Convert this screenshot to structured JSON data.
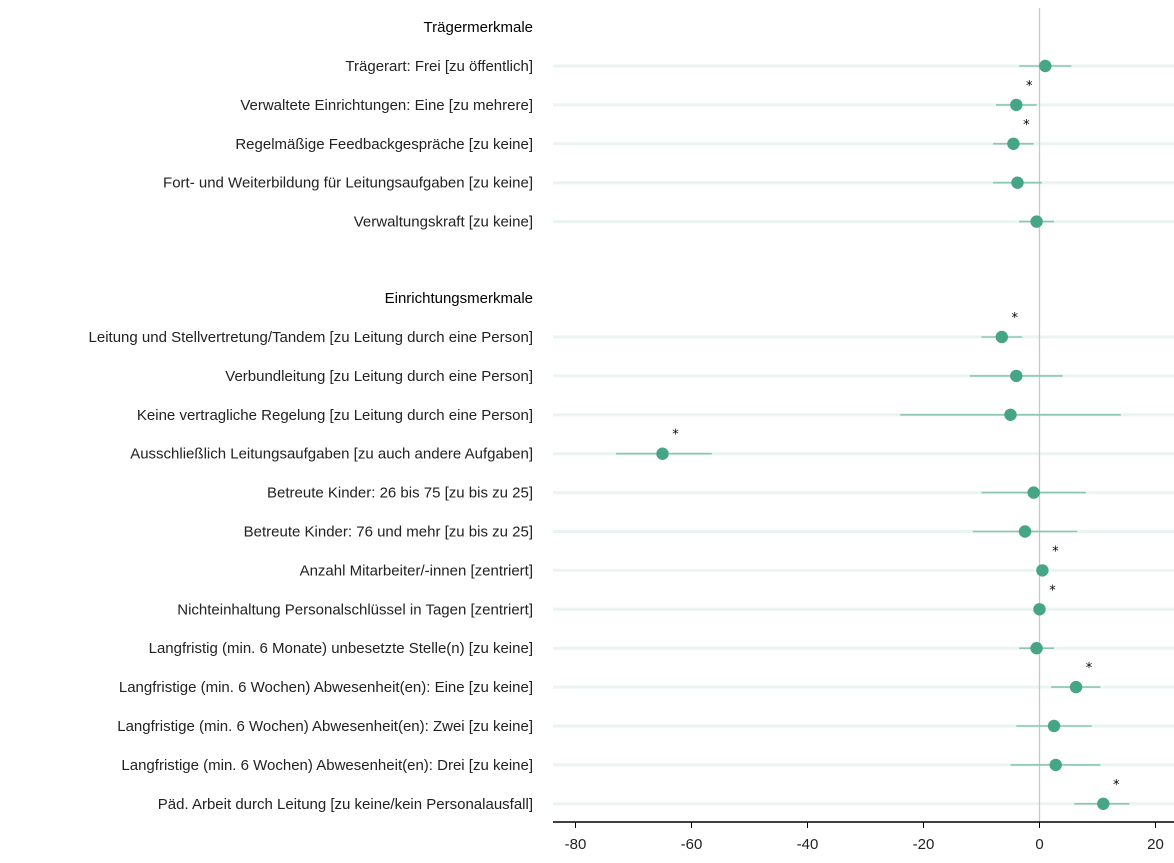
{
  "chart_data": {
    "type": "scatter",
    "subtype": "coefficient-plot-with-confidence-intervals",
    "title": "",
    "xlabel": "",
    "ylabel": "",
    "xlim": [
      -83,
      23
    ],
    "xticks": [
      -80,
      -60,
      -40,
      -20,
      0,
      20
    ],
    "grid": true,
    "legend": "none",
    "reference_line_x": 0,
    "colors": {
      "point": "#45a586",
      "ci_line": "#8cc6b2",
      "row_band": "#eaf4f1",
      "zero_line": "#c8c8c8",
      "axis": "#000000"
    },
    "groups": [
      {
        "name": "Trägermerkmale",
        "rows": [
          {
            "label": "Trägerart: Frei [zu öffentlich]",
            "estimate": 1.0,
            "ci": [
              -3.5,
              5.5
            ],
            "significant": false
          },
          {
            "label": "Verwaltete Einrichtungen: Eine [zu mehrere]",
            "estimate": -4.0,
            "ci": [
              -7.5,
              -0.5
            ],
            "significant": true
          },
          {
            "label": "Regelmäßige Feedbackgespräche [zu keine]",
            "estimate": -4.5,
            "ci": [
              -8.0,
              -1.0
            ],
            "significant": true
          },
          {
            "label": "Fort- und Weiterbildung für Leitungsaufgaben [zu keine]",
            "estimate": -3.8,
            "ci": [
              -8.0,
              0.4
            ],
            "significant": false
          },
          {
            "label": "Verwaltungskraft [zu keine]",
            "estimate": -0.5,
            "ci": [
              -3.5,
              2.5
            ],
            "significant": false
          }
        ]
      },
      {
        "name": "Einrichtungsmerkmale",
        "rows": [
          {
            "label": "Leitung und Stellvertretung/Tandem [zu Leitung durch eine Person]",
            "estimate": -6.5,
            "ci": [
              -10.0,
              -3.0
            ],
            "significant": true
          },
          {
            "label": "Verbundleitung [zu Leitung durch eine Person]",
            "estimate": -4.0,
            "ci": [
              -12.0,
              4.0
            ],
            "significant": false
          },
          {
            "label": "Keine vertragliche Regelung [zu Leitung durch eine Person]",
            "estimate": -5.0,
            "ci": [
              -24.0,
              14.0
            ],
            "significant": false
          },
          {
            "label": "Ausschließlich Leitungsaufgaben [zu auch andere Aufgaben]",
            "estimate": -65.0,
            "ci": [
              -73.0,
              -56.5
            ],
            "significant": true
          },
          {
            "label": "Betreute Kinder: 26 bis 75 [zu bis zu 25]",
            "estimate": -1.0,
            "ci": [
              -10.0,
              8.0
            ],
            "significant": false
          },
          {
            "label": "Betreute Kinder: 76 und mehr [zu bis zu 25]",
            "estimate": -2.5,
            "ci": [
              -11.5,
              6.5
            ],
            "significant": false
          },
          {
            "label": "Anzahl Mitarbeiter/-innen [zentriert]",
            "estimate": 0.5,
            "ci": [
              0.0,
              1.0
            ],
            "significant": true
          },
          {
            "label": "Nichteinhaltung Personalschlüssel in Tagen [zentriert]",
            "estimate": 0.0,
            "ci": [
              -0.3,
              0.3
            ],
            "significant": true
          },
          {
            "label": "Langfristig (min. 6 Monate) unbesetzte Stelle(n) [zu keine]",
            "estimate": -0.5,
            "ci": [
              -3.5,
              2.5
            ],
            "significant": false
          },
          {
            "label": "Langfristige (min. 6 Wochen) Abwesenheit(en): Eine [zu keine]",
            "estimate": 6.3,
            "ci": [
              2.0,
              10.5
            ],
            "significant": true
          },
          {
            "label": "Langfristige (min. 6 Wochen) Abwesenheit(en): Zwei [zu keine]",
            "estimate": 2.5,
            "ci": [
              -4.0,
              9.0
            ],
            "significant": false
          },
          {
            "label": "Langfristige (min. 6 Wochen) Abwesenheit(en): Drei [zu keine]",
            "estimate": 2.8,
            "ci": [
              -5.0,
              10.5
            ],
            "significant": false
          },
          {
            "label": "Päd. Arbeit durch Leitung [zu keine/kein Personalausfall]",
            "estimate": 11.0,
            "ci": [
              6.0,
              15.5
            ],
            "significant": true
          }
        ]
      }
    ],
    "significance_marker": "*"
  }
}
